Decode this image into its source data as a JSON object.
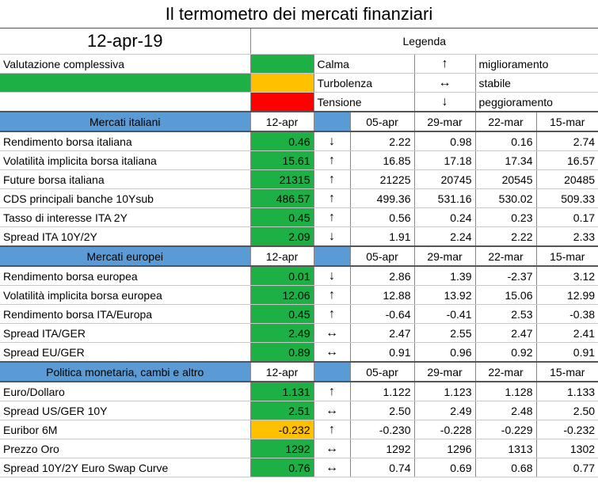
{
  "title": "Il termometro dei mercati finanziari",
  "date": "12-apr-19",
  "legend": {
    "title": "Legenda",
    "overall_label": "Valutazione complessiva",
    "overall_status": "green",
    "items": [
      {
        "color": "#1db145",
        "label": "Calma",
        "arrow": "↑",
        "arrow_label": "miglioramento"
      },
      {
        "color": "#ffc000",
        "label": "Turbolenza",
        "arrow": "↔",
        "arrow_label": "stabile"
      },
      {
        "color": "#ff0000",
        "label": "Tensione",
        "arrow": "↓",
        "arrow_label": "peggioramento"
      }
    ]
  },
  "colors": {
    "green": "#1db145",
    "amber": "#ffc000",
    "red": "#ff0000",
    "header_blue": "#5b9bd5"
  },
  "sections": [
    {
      "title": "Mercati italiani",
      "current_date": "12-apr",
      "past_dates": [
        "05-apr",
        "29-mar",
        "22-mar",
        "15-mar"
      ],
      "rows": [
        {
          "label": "Rendimento borsa italiana",
          "value": "0.46",
          "status": "green",
          "trend": "↓",
          "history": [
            "2.22",
            "0.98",
            "0.16",
            "2.74"
          ]
        },
        {
          "label": "Volatilità implicita borsa italiana",
          "value": "15.61",
          "status": "green",
          "trend": "↑",
          "history": [
            "16.85",
            "17.18",
            "17.34",
            "16.57"
          ]
        },
        {
          "label": "Future borsa italiana",
          "value": "21315",
          "status": "green",
          "trend": "↑",
          "history": [
            "21225",
            "20745",
            "20545",
            "20485"
          ]
        },
        {
          "label": "CDS principali banche 10Ysub",
          "value": "486.57",
          "status": "green",
          "trend": "↑",
          "history": [
            "499.36",
            "531.16",
            "530.02",
            "509.33"
          ]
        },
        {
          "label": "Tasso di interesse ITA 2Y",
          "value": "0.45",
          "status": "green",
          "trend": "↑",
          "history": [
            "0.56",
            "0.24",
            "0.23",
            "0.17"
          ]
        },
        {
          "label": "Spread ITA 10Y/2Y",
          "value": "2.09",
          "status": "green",
          "trend": "↓",
          "history": [
            "1.91",
            "2.24",
            "2.22",
            "2.33"
          ]
        }
      ]
    },
    {
      "title": "Mercati europei",
      "current_date": "12-apr",
      "past_dates": [
        "05-apr",
        "29-mar",
        "22-mar",
        "15-mar"
      ],
      "rows": [
        {
          "label": "Rendimento borsa europea",
          "value": "0.01",
          "status": "green",
          "trend": "↓",
          "history": [
            "2.86",
            "1.39",
            "-2.37",
            "3.12"
          ]
        },
        {
          "label": "Volatilità implicita borsa europea",
          "value": "12.06",
          "status": "green",
          "trend": "↑",
          "history": [
            "12.88",
            "13.92",
            "15.06",
            "12.99"
          ]
        },
        {
          "label": "Rendimento borsa ITA/Europa",
          "value": "0.45",
          "status": "green",
          "trend": "↑",
          "history": [
            "-0.64",
            "-0.41",
            "2.53",
            "-0.38"
          ]
        },
        {
          "label": "Spread ITA/GER",
          "value": "2.49",
          "status": "green",
          "trend": "↔",
          "history": [
            "2.47",
            "2.55",
            "2.47",
            "2.41"
          ]
        },
        {
          "label": "Spread EU/GER",
          "value": "0.89",
          "status": "green",
          "trend": "↔",
          "history": [
            "0.91",
            "0.96",
            "0.92",
            "0.91"
          ]
        }
      ]
    },
    {
      "title": "Politica monetaria, cambi e altro",
      "current_date": "12-apr",
      "past_dates": [
        "05-apr",
        "29-mar",
        "22-mar",
        "15-mar"
      ],
      "rows": [
        {
          "label": "Euro/Dollaro",
          "value": "1.131",
          "status": "green",
          "trend": "↑",
          "history": [
            "1.122",
            "1.123",
            "1.128",
            "1.133"
          ]
        },
        {
          "label": "Spread US/GER 10Y",
          "value": "2.51",
          "status": "green",
          "trend": "↔",
          "history": [
            "2.50",
            "2.49",
            "2.48",
            "2.50"
          ]
        },
        {
          "label": "Euribor 6M",
          "value": "-0.232",
          "status": "amber",
          "trend": "↑",
          "history": [
            "-0.230",
            "-0.228",
            "-0.229",
            "-0.232"
          ]
        },
        {
          "label": "Prezzo Oro",
          "value": "1292",
          "status": "green",
          "trend": "↔",
          "history": [
            "1292",
            "1296",
            "1313",
            "1302"
          ]
        },
        {
          "label": "Spread 10Y/2Y Euro Swap Curve",
          "value": "0.76",
          "status": "green",
          "trend": "↔",
          "history": [
            "0.74",
            "0.69",
            "0.68",
            "0.77"
          ]
        }
      ]
    }
  ]
}
